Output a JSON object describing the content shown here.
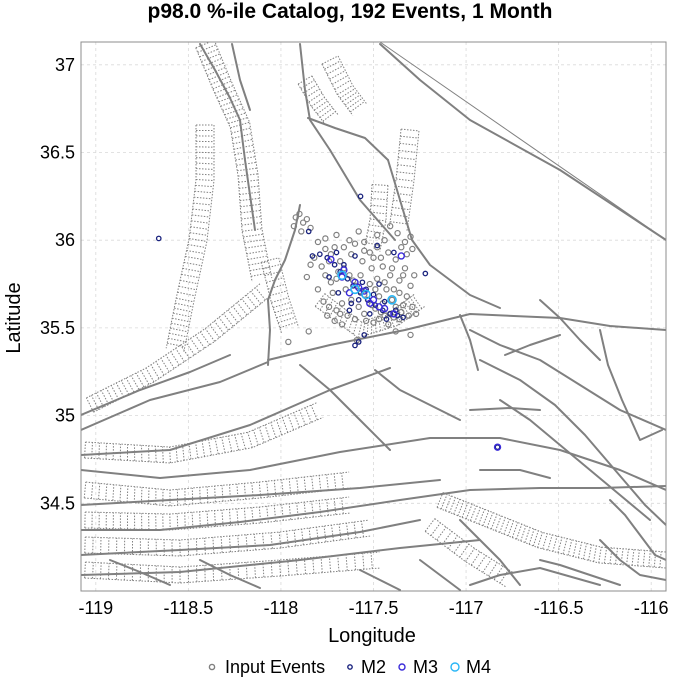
{
  "chart_data": {
    "type": "scatter",
    "title": "p98.0 %-ile Catalog, 192 Events, 1 Month",
    "xlabel": "Longitude",
    "ylabel": "Latitude",
    "xlim": [
      -119.08,
      -115.92
    ],
    "ylim": [
      34.0,
      37.13
    ],
    "x_ticks": [
      "-119",
      "-118.5",
      "-118",
      "-117.5",
      "-117",
      "-116.5",
      "-116"
    ],
    "x_tick_values": [
      -119,
      -118.5,
      -118,
      -117.5,
      -117,
      -116.5,
      -116
    ],
    "y_ticks": [
      "34.5",
      "35",
      "35.5",
      "36",
      "36.5",
      "37"
    ],
    "y_tick_values": [
      34.5,
      35,
      35.5,
      36,
      36.5,
      37
    ],
    "grid": true,
    "legend_position": "bottom",
    "legend": [
      {
        "label": "Input Events",
        "color": "#808080"
      },
      {
        "label": "M2",
        "color": "#1a237e"
      },
      {
        "label": "M3",
        "color": "#3a2bd9"
      },
      {
        "label": "M4",
        "color": "#29b6f6"
      }
    ],
    "series": [
      {
        "name": "Input Events",
        "color": "#808080",
        "points": [
          [
            -117.92,
            36.13
          ],
          [
            -117.9,
            36.15
          ],
          [
            -117.88,
            36.1
          ],
          [
            -117.93,
            36.08
          ],
          [
            -117.86,
            36.12
          ],
          [
            -117.89,
            36.05
          ],
          [
            -117.84,
            36.07
          ],
          [
            -117.8,
            35.99
          ],
          [
            -117.76,
            35.95
          ],
          [
            -117.73,
            35.92
          ],
          [
            -117.71,
            35.96
          ],
          [
            -117.68,
            35.88
          ],
          [
            -117.66,
            35.84
          ],
          [
            -117.63,
            35.8
          ],
          [
            -117.61,
            35.77
          ],
          [
            -117.59,
            35.74
          ],
          [
            -117.57,
            35.71
          ],
          [
            -117.55,
            35.69
          ],
          [
            -117.53,
            35.66
          ],
          [
            -117.51,
            35.63
          ],
          [
            -117.49,
            35.61
          ],
          [
            -117.46,
            35.59
          ],
          [
            -117.44,
            35.57
          ],
          [
            -117.41,
            35.58
          ],
          [
            -117.39,
            35.56
          ],
          [
            -117.36,
            35.55
          ],
          [
            -117.7,
            35.78
          ],
          [
            -117.65,
            35.72
          ],
          [
            -117.62,
            35.66
          ],
          [
            -117.58,
            35.62
          ],
          [
            -117.72,
            35.7
          ],
          [
            -117.67,
            35.64
          ],
          [
            -117.55,
            35.58
          ],
          [
            -117.47,
            35.68
          ],
          [
            -117.43,
            35.72
          ],
          [
            -117.4,
            35.66
          ],
          [
            -117.38,
            35.62
          ],
          [
            -117.34,
            35.63
          ],
          [
            -117.32,
            35.68
          ],
          [
            -117.36,
            35.77
          ],
          [
            -117.41,
            35.8
          ],
          [
            -117.45,
            35.85
          ],
          [
            -117.5,
            35.9
          ],
          [
            -117.55,
            35.94
          ],
          [
            -117.6,
            35.98
          ],
          [
            -117.48,
            35.96
          ],
          [
            -117.42,
            35.93
          ],
          [
            -117.38,
            35.89
          ],
          [
            -117.35,
            35.96
          ],
          [
            -117.33,
            35.99
          ],
          [
            -117.3,
            36.02
          ],
          [
            -117.37,
            36.04
          ],
          [
            -117.33,
            35.84
          ],
          [
            -117.28,
            35.8
          ],
          [
            -117.3,
            35.74
          ],
          [
            -117.7,
            35.6
          ],
          [
            -117.74,
            35.62
          ],
          [
            -117.77,
            35.65
          ],
          [
            -117.68,
            35.58
          ],
          [
            -117.64,
            35.57
          ],
          [
            -117.6,
            35.55
          ],
          [
            -117.8,
            35.72
          ],
          [
            -117.78,
            35.85
          ],
          [
            -117.74,
            35.88
          ],
          [
            -117.82,
            35.9
          ],
          [
            -117.63,
            36.0
          ],
          [
            -117.58,
            36.05
          ],
          [
            -117.55,
            35.99
          ],
          [
            -117.52,
            35.93
          ],
          [
            -117.46,
            35.9
          ],
          [
            -117.48,
            35.78
          ],
          [
            -117.52,
            35.75
          ],
          [
            -117.44,
            35.76
          ],
          [
            -117.39,
            35.72
          ],
          [
            -117.36,
            35.7
          ],
          [
            -117.35,
            35.59
          ],
          [
            -117.31,
            35.57
          ],
          [
            -117.29,
            35.62
          ],
          [
            -117.27,
            35.58
          ],
          [
            -117.42,
            35.52
          ],
          [
            -117.38,
            35.48
          ],
          [
            -117.3,
            35.46
          ],
          [
            -117.67,
            35.52
          ],
          [
            -117.71,
            35.54
          ],
          [
            -117.75,
            35.57
          ],
          [
            -117.85,
            35.48
          ],
          [
            -117.96,
            35.42
          ],
          [
            -117.59,
            35.43
          ],
          [
            -117.84,
            35.86
          ],
          [
            -117.86,
            35.79
          ],
          [
            -117.44,
            36.0
          ],
          [
            -117.41,
            36.08
          ],
          [
            -117.48,
            36.03
          ],
          [
            -117.56,
            35.88
          ],
          [
            -117.62,
            35.92
          ],
          [
            -117.69,
            35.82
          ],
          [
            -117.73,
            35.76
          ],
          [
            -117.76,
            35.8
          ],
          [
            -117.57,
            35.8
          ],
          [
            -117.51,
            35.84
          ],
          [
            -117.45,
            35.64
          ],
          [
            -117.49,
            35.72
          ],
          [
            -117.4,
            35.84
          ],
          [
            -117.34,
            35.8
          ],
          [
            -117.32,
            35.92
          ],
          [
            -117.29,
            35.95
          ],
          [
            -117.54,
            35.54
          ],
          [
            -117.5,
            35.53
          ],
          [
            -117.47,
            35.55
          ],
          [
            -117.66,
            35.96
          ],
          [
            -117.7,
            36.03
          ],
          [
            -117.76,
            36.01
          ]
        ]
      },
      {
        "name": "M2",
        "color": "#1a237e",
        "points": [
          [
            -118.66,
            36.01
          ],
          [
            -117.79,
            35.92
          ],
          [
            -117.75,
            35.9
          ],
          [
            -117.71,
            35.86
          ],
          [
            -117.68,
            35.82
          ],
          [
            -117.64,
            35.78
          ],
          [
            -117.61,
            35.74
          ],
          [
            -117.57,
            35.7
          ],
          [
            -117.53,
            35.66
          ],
          [
            -117.49,
            35.63
          ],
          [
            -117.45,
            35.6
          ],
          [
            -117.41,
            35.58
          ],
          [
            -117.37,
            35.57
          ],
          [
            -117.74,
            35.79
          ],
          [
            -117.62,
            35.64
          ],
          [
            -117.5,
            35.69
          ],
          [
            -117.44,
            35.65
          ],
          [
            -117.38,
            35.6
          ],
          [
            -117.56,
            35.76
          ],
          [
            -117.66,
            35.86
          ],
          [
            -117.7,
            35.93
          ],
          [
            -117.6,
            35.91
          ],
          [
            -117.55,
            35.46
          ],
          [
            -117.58,
            35.42
          ],
          [
            -117.6,
            35.4
          ],
          [
            -117.57,
            36.25
          ],
          [
            -117.85,
            36.05
          ],
          [
            -117.83,
            35.91
          ],
          [
            -117.22,
            35.81
          ],
          [
            -117.43,
            35.55
          ],
          [
            -117.34,
            35.56
          ],
          [
            -117.52,
            35.58
          ],
          [
            -117.63,
            35.6
          ],
          [
            -117.69,
            35.7
          ],
          [
            -117.48,
            35.97
          ],
          [
            -117.39,
            35.93
          ],
          [
            -116.83,
            34.82
          ],
          [
            -117.47,
            35.75
          ],
          [
            -117.54,
            35.72
          ],
          [
            -117.58,
            35.66
          ]
        ]
      },
      {
        "name": "M3",
        "color": "#3a2bd9",
        "points": [
          [
            -117.73,
            35.89
          ],
          [
            -117.66,
            35.83
          ],
          [
            -117.6,
            35.76
          ],
          [
            -117.55,
            35.71
          ],
          [
            -117.5,
            35.66
          ],
          [
            -117.44,
            35.61
          ],
          [
            -117.39,
            35.58
          ],
          [
            -117.67,
            35.79
          ],
          [
            -117.58,
            35.73
          ],
          [
            -117.52,
            35.64
          ],
          [
            -117.35,
            35.91
          ],
          [
            -116.83,
            34.82
          ],
          [
            -117.63,
            35.7
          ],
          [
            -117.47,
            35.62
          ]
        ]
      },
      {
        "name": "M4",
        "color": "#29b6f6",
        "points": [
          [
            -117.67,
            35.8
          ],
          [
            -117.6,
            35.72
          ],
          [
            -117.4,
            35.66
          ],
          [
            -117.54,
            35.69
          ]
        ]
      }
    ]
  }
}
